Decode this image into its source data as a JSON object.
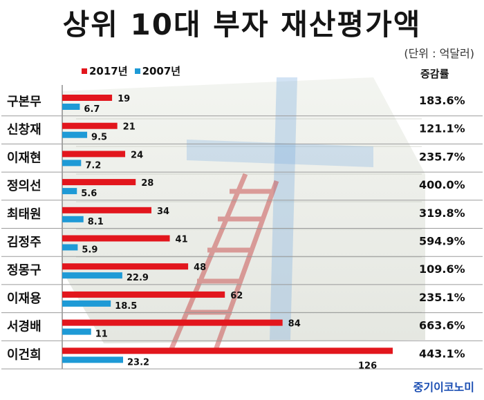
{
  "title": "상위 10대 부자 재산평가액",
  "unit": "(단위 : 억달러)",
  "pct_header": "증감률",
  "logo": "중기이코노미",
  "colors": {
    "series_2017": "#e2161d",
    "series_2007": "#1e9ad6"
  },
  "chart_data": {
    "type": "bar",
    "orientation": "horizontal",
    "title": "상위 10대 부자 재산평가액",
    "unit": "(단위 : 억달러)",
    "categories": [
      "구본무",
      "신창재",
      "이재현",
      "정의선",
      "최태원",
      "김정주",
      "정몽구",
      "이재용",
      "서경배",
      "이건희"
    ],
    "series": [
      {
        "name": "2017년",
        "values": [
          19,
          21,
          24,
          28,
          34,
          41,
          48,
          62,
          84,
          126
        ]
      },
      {
        "name": "2007년",
        "values": [
          6.7,
          9.5,
          7.2,
          5.6,
          8.1,
          5.9,
          22.9,
          18.5,
          11,
          23.2
        ]
      }
    ],
    "value_labels_2017": [
      "19",
      "21",
      "24",
      "28",
      "34",
      "41",
      "48",
      "62",
      "84",
      "126"
    ],
    "value_labels_2007": [
      "6.7",
      "9.5",
      "7.2",
      "5.6",
      "8.1",
      "5.9",
      "22.9",
      "18.5",
      "11",
      "23.2"
    ],
    "change_header": "증감률",
    "change": [
      "183.6%",
      "121.1%",
      "235.7%",
      "400.0%",
      "319.8%",
      "594.9%",
      "109.6%",
      "235.1%",
      "663.6%",
      "443.1%"
    ],
    "xlim": [
      0,
      126
    ],
    "legend_position": "top-left"
  }
}
